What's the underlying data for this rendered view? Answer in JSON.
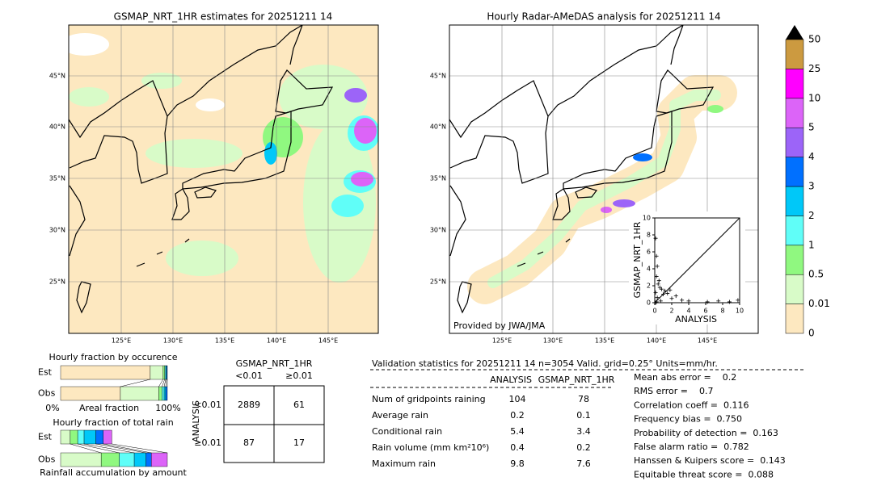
{
  "left_map": {
    "title": "GSMAP_NRT_1HR estimates for 20251211 14",
    "lat_labels": [
      "45°N",
      "40°N",
      "35°N",
      "30°N",
      "25°N"
    ],
    "lon_labels": [
      "125°E",
      "130°E",
      "135°E",
      "140°E",
      "145°E"
    ]
  },
  "right_map": {
    "title": "Hourly Radar-AMeDAS analysis for 20251211 14",
    "lat_labels": [
      "45°N",
      "40°N",
      "35°N",
      "30°N",
      "25°N"
    ],
    "lon_labels": [
      "125°E",
      "130°E",
      "135°E",
      "140°E",
      "145°E"
    ],
    "credit": "Provided by JWA/JMA"
  },
  "scatter": {
    "type": "scatter",
    "xlabel": "ANALYSIS",
    "ylabel": "GSMAP_NRT_1HR",
    "xlim": [
      0,
      10
    ],
    "ylim": [
      0,
      10
    ],
    "xticks": [
      0,
      2,
      4,
      6,
      8,
      10
    ],
    "yticks": [
      0,
      2,
      4,
      6,
      8,
      10
    ],
    "x": [
      0.1,
      0.2,
      0.3,
      0.2,
      0.5,
      0.6,
      0.1,
      0.8,
      1.0,
      1.2,
      1.5,
      0.3,
      2.0,
      2.5,
      0.4,
      3.2,
      4.0,
      6.2,
      7.5,
      8.8,
      9.8,
      0.1,
      0.2,
      0.7,
      1.8
    ],
    "y": [
      7.6,
      5.5,
      4.3,
      3.1,
      2.6,
      1.8,
      1.2,
      1.6,
      1.0,
      1.4,
      1.1,
      0.6,
      0.5,
      0.8,
      2.2,
      0.3,
      0.2,
      0.1,
      0.2,
      0.1,
      0.3,
      0.0,
      0.1,
      0.2,
      1.5
    ]
  },
  "colorbar": {
    "labels": [
      "0",
      "0.01",
      "0.5",
      "1",
      "2",
      "3",
      "4",
      "5",
      "10",
      "25",
      "50"
    ],
    "colors": [
      "#fde8c0",
      "#d8fbc8",
      "#90f880",
      "#60fef8",
      "#00c8f8",
      "#0070ff",
      "#9c64f8",
      "#dc64f8",
      "#ff00ff",
      "#cc9a40"
    ]
  },
  "occurrence": {
    "title": "Hourly fraction by occurence",
    "rows": [
      "Est",
      "Obs"
    ],
    "axis": [
      "0%",
      "Areal fraction",
      "100%"
    ],
    "colors": [
      "#fde8c0",
      "#d8fbc8",
      "#90f880",
      "#60fef8",
      "#00c8f8",
      "#0070ff"
    ],
    "segments": [
      [
        84,
        12,
        1.5,
        1,
        0.8,
        0.7
      ],
      [
        56,
        36,
        3,
        2,
        1.5,
        1.5
      ]
    ]
  },
  "amount": {
    "title": "Hourly fraction of total rain",
    "rows": [
      "Est",
      "Obs"
    ],
    "footer": "Rainfall accumulation by amount",
    "colors": [
      "#d8fbc8",
      "#90f880",
      "#60fef8",
      "#00c8f8",
      "#0070ff",
      "#dc64f8"
    ],
    "segments": [
      [
        9,
        7,
        6,
        11,
        7,
        8
      ],
      [
        38,
        17,
        14,
        11,
        5,
        15
      ]
    ]
  },
  "contingency": {
    "title": "GSMAP_NRT_1HR",
    "columns": [
      "<0.01",
      "≥0.01"
    ],
    "side": "ANALYSIS",
    "row_labels": [
      "<0.01",
      "≥0.01"
    ],
    "cells": [
      [
        2889,
        61
      ],
      [
        87,
        17
      ]
    ]
  },
  "validation": {
    "header": "Validation statistics for 20251211 14  n=3054 Valid. grid=0.25° Units=mm/hr.",
    "columns": [
      "ANALYSIS",
      "GSMAP_NRT_1HR"
    ],
    "rows": [
      [
        "Num of gridpoints raining",
        "104",
        "78"
      ],
      [
        "Average rain",
        "0.2",
        "0.1"
      ],
      [
        "Conditional rain",
        "5.4",
        "3.4"
      ],
      [
        "Rain volume (mm km²10⁶)",
        "0.4",
        "0.2"
      ],
      [
        "Maximum rain",
        "9.8",
        "7.6"
      ]
    ],
    "scores": [
      "Mean abs error =    0.2",
      "RMS error =    0.7",
      "Correlation coeff =  0.116",
      "Frequency bias =  0.750",
      "Probability of detection =  0.163",
      "False alarm ratio =  0.782",
      "Hanssen & Kuipers score =  0.143",
      "Equitable threat score =  0.088"
    ]
  }
}
